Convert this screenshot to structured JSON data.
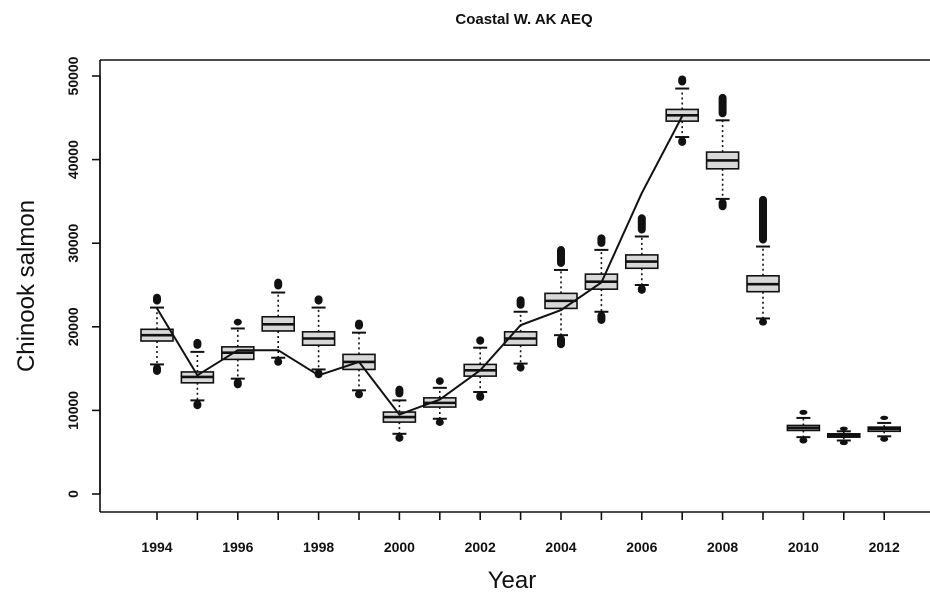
{
  "chart_data": {
    "type": "box",
    "title": "Coastal W. AK AEQ",
    "xlabel": "Year",
    "ylabel": "Chinook salmon",
    "ylim": [
      -2500,
      52000
    ],
    "y_ticks": [
      0,
      10000,
      20000,
      30000,
      40000,
      50000
    ],
    "x_tick_labels": [
      "1994",
      "1996",
      "1998",
      "2000",
      "2002",
      "2004",
      "2006",
      "2008",
      "2010",
      "2012"
    ],
    "boxes": [
      {
        "year": 1994,
        "low_whisker": 15500,
        "q1": 18300,
        "median": 19000,
        "q3": 19700,
        "high_whisker": 22300,
        "outlier_low": 14600,
        "outlier_high": 23600
      },
      {
        "year": 1995,
        "low_whisker": 11200,
        "q1": 13300,
        "median": 14000,
        "q3": 14600,
        "high_whisker": 17000,
        "outlier_low": 10500,
        "outlier_high": 18200
      },
      {
        "year": 1996,
        "low_whisker": 13800,
        "q1": 16100,
        "median": 16900,
        "q3": 17600,
        "high_whisker": 19800,
        "outlier_low": 13000,
        "outlier_high": 20600
      },
      {
        "year": 1997,
        "low_whisker": 16300,
        "q1": 19500,
        "median": 20300,
        "q3": 21200,
        "high_whisker": 24100,
        "outlier_low": 15700,
        "outlier_high": 25400
      },
      {
        "year": 1998,
        "low_whisker": 14900,
        "q1": 17800,
        "median": 18600,
        "q3": 19400,
        "high_whisker": 22300,
        "outlier_low": 14200,
        "outlier_high": 23400
      },
      {
        "year": 1999,
        "low_whisker": 12400,
        "q1": 14900,
        "median": 15800,
        "q3": 16700,
        "high_whisker": 19300,
        "outlier_low": 11800,
        "outlier_high": 20500
      },
      {
        "year": 2000,
        "low_whisker": 7200,
        "q1": 8600,
        "median": 9200,
        "q3": 9800,
        "high_whisker": 11200,
        "outlier_low": 6600,
        "outlier_high": 12600
      },
      {
        "year": 2001,
        "low_whisker": 9000,
        "q1": 10400,
        "median": 10900,
        "q3": 11500,
        "high_whisker": 12700,
        "outlier_low": 8500,
        "outlier_high": 13600
      },
      {
        "year": 2002,
        "low_whisker": 12200,
        "q1": 14100,
        "median": 14800,
        "q3": 15500,
        "high_whisker": 17500,
        "outlier_low": 11500,
        "outlier_high": 18500
      },
      {
        "year": 2003,
        "low_whisker": 15600,
        "q1": 17800,
        "median": 18600,
        "q3": 19400,
        "high_whisker": 21800,
        "outlier_low": 15000,
        "outlier_high": 23300
      },
      {
        "year": 2004,
        "low_whisker": 19000,
        "q1": 22200,
        "median": 23100,
        "q3": 24000,
        "high_whisker": 26800,
        "outlier_low": 17800,
        "outlier_high": 29300
      },
      {
        "year": 2005,
        "low_whisker": 21800,
        "q1": 24500,
        "median": 25400,
        "q3": 26300,
        "high_whisker": 29200,
        "outlier_low": 20700,
        "outlier_high": 30700
      },
      {
        "year": 2006,
        "low_whisker": 25000,
        "q1": 27000,
        "median": 27800,
        "q3": 28600,
        "high_whisker": 30800,
        "outlier_low": 24300,
        "outlier_high": 33100
      },
      {
        "year": 2007,
        "low_whisker": 42700,
        "q1": 44600,
        "median": 45300,
        "q3": 46000,
        "high_whisker": 48500,
        "outlier_low": 42000,
        "outlier_high": 49700
      },
      {
        "year": 2008,
        "low_whisker": 35300,
        "q1": 38900,
        "median": 39900,
        "q3": 40900,
        "high_whisker": 44700,
        "outlier_low": 34300,
        "outlier_high": 47500
      },
      {
        "year": 2009,
        "low_whisker": 21000,
        "q1": 24200,
        "median": 25100,
        "q3": 26100,
        "high_whisker": 29600,
        "outlier_low": 20500,
        "outlier_high": 35300
      },
      {
        "year": 2010,
        "low_whisker": 6800,
        "q1": 7600,
        "median": 7900,
        "q3": 8200,
        "high_whisker": 9100,
        "outlier_low": 6400,
        "outlier_high": 9700
      },
      {
        "year": 2011,
        "low_whisker": 6400,
        "q1": 6800,
        "median": 7000,
        "q3": 7200,
        "high_whisker": 7500,
        "outlier_low": 6200,
        "outlier_high": 7700
      },
      {
        "year": 2012,
        "low_whisker": 6900,
        "q1": 7500,
        "median": 7800,
        "q3": 8000,
        "high_whisker": 8500,
        "outlier_low": 6600,
        "outlier_high": 9000
      }
    ],
    "line": {
      "x": [
        1994,
        1995,
        1996,
        1997,
        1998,
        1999,
        2000,
        2001,
        2002,
        2003,
        2004,
        2005,
        2006,
        2007
      ],
      "y": [
        22200,
        14200,
        17200,
        17200,
        14200,
        15800,
        9500,
        11300,
        14800,
        20200,
        22000,
        25300,
        36000,
        45200
      ]
    },
    "grid": false,
    "box_fill": "#d8d8d8",
    "line_color": "#111111"
  }
}
